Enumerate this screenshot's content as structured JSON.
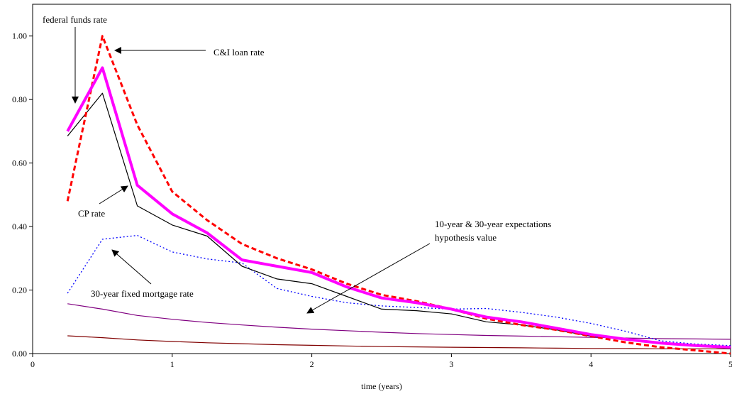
{
  "chart_data": {
    "type": "line",
    "title": "",
    "xlabel": "time (years)",
    "ylabel": "",
    "xlim": [
      0,
      5
    ],
    "ylim": [
      0,
      1.1
    ],
    "x_ticks": [
      "0",
      "1",
      "2",
      "3",
      "4",
      "5"
    ],
    "y_ticks": [
      "0.00",
      "0.20",
      "0.40",
      "0.60",
      "0.80",
      "1.00"
    ],
    "grid": false,
    "series": [
      {
        "key": "cil",
        "color": "#ff0000",
        "style": "dashed-thick",
        "points": [
          [
            0.25,
            0.48
          ],
          [
            0.5,
            1.0
          ],
          [
            0.75,
            0.72
          ],
          [
            1.0,
            0.51
          ],
          [
            1.25,
            0.42
          ],
          [
            1.5,
            0.345
          ],
          [
            1.75,
            0.3
          ],
          [
            2.0,
            0.265
          ],
          [
            2.25,
            0.22
          ],
          [
            2.5,
            0.185
          ],
          [
            2.75,
            0.165
          ],
          [
            3.0,
            0.14
          ],
          [
            3.25,
            0.11
          ],
          [
            3.5,
            0.09
          ],
          [
            3.75,
            0.075
          ],
          [
            4.0,
            0.055
          ],
          [
            4.25,
            0.035
          ],
          [
            4.5,
            0.02
          ],
          [
            4.75,
            0.01
          ],
          [
            5.0,
            0.0
          ]
        ]
      },
      {
        "key": "ff",
        "color": "#ff00ff",
        "style": "solid-thick",
        "points": [
          [
            0.25,
            0.7
          ],
          [
            0.5,
            0.9
          ],
          [
            0.75,
            0.53
          ],
          [
            1.0,
            0.44
          ],
          [
            1.25,
            0.38
          ],
          [
            1.5,
            0.295
          ],
          [
            1.75,
            0.275
          ],
          [
            2.0,
            0.255
          ],
          [
            2.25,
            0.21
          ],
          [
            2.5,
            0.175
          ],
          [
            2.75,
            0.16
          ],
          [
            3.0,
            0.14
          ],
          [
            3.25,
            0.115
          ],
          [
            3.5,
            0.1
          ],
          [
            3.75,
            0.08
          ],
          [
            4.0,
            0.06
          ],
          [
            4.25,
            0.045
          ],
          [
            4.5,
            0.033
          ],
          [
            4.75,
            0.025
          ],
          [
            5.0,
            0.02
          ]
        ]
      },
      {
        "key": "cp",
        "color": "#000000",
        "style": "solid-thin",
        "points": [
          [
            0.25,
            0.685
          ],
          [
            0.5,
            0.82
          ],
          [
            0.75,
            0.465
          ],
          [
            1.0,
            0.405
          ],
          [
            1.25,
            0.37
          ],
          [
            1.5,
            0.275
          ],
          [
            1.75,
            0.235
          ],
          [
            2.0,
            0.22
          ],
          [
            2.25,
            0.18
          ],
          [
            2.5,
            0.14
          ],
          [
            2.75,
            0.135
          ],
          [
            3.0,
            0.125
          ],
          [
            3.25,
            0.1
          ],
          [
            3.5,
            0.09
          ],
          [
            3.75,
            0.075
          ],
          [
            4.0,
            0.055
          ],
          [
            4.25,
            0.045
          ],
          [
            4.5,
            0.035
          ],
          [
            4.75,
            0.025
          ],
          [
            5.0,
            0.015
          ]
        ]
      },
      {
        "key": "mort",
        "color": "#0000ff",
        "style": "dotted",
        "points": [
          [
            0.25,
            0.19
          ],
          [
            0.5,
            0.36
          ],
          [
            0.75,
            0.372
          ],
          [
            1.0,
            0.32
          ],
          [
            1.25,
            0.298
          ],
          [
            1.5,
            0.285
          ],
          [
            1.75,
            0.205
          ],
          [
            2.0,
            0.18
          ],
          [
            2.25,
            0.16
          ],
          [
            2.5,
            0.15
          ],
          [
            2.75,
            0.145
          ],
          [
            3.0,
            0.14
          ],
          [
            3.25,
            0.142
          ],
          [
            3.5,
            0.13
          ],
          [
            3.75,
            0.115
          ],
          [
            4.0,
            0.095
          ],
          [
            4.25,
            0.07
          ],
          [
            4.5,
            0.04
          ],
          [
            4.75,
            0.03
          ],
          [
            5.0,
            0.025
          ]
        ]
      },
      {
        "key": "ehv10",
        "color": "#800080",
        "style": "solid-thin",
        "points": [
          [
            0.25,
            0.157
          ],
          [
            0.5,
            0.14
          ],
          [
            0.75,
            0.12
          ],
          [
            1.0,
            0.108
          ],
          [
            1.25,
            0.098
          ],
          [
            1.5,
            0.09
          ],
          [
            1.75,
            0.083
          ],
          [
            2.0,
            0.077
          ],
          [
            2.25,
            0.072
          ],
          [
            2.5,
            0.067
          ],
          [
            2.75,
            0.063
          ],
          [
            3.0,
            0.06
          ],
          [
            3.25,
            0.057
          ],
          [
            3.5,
            0.055
          ],
          [
            3.75,
            0.053
          ],
          [
            4.0,
            0.051
          ],
          [
            4.25,
            0.049
          ],
          [
            4.5,
            0.047
          ],
          [
            4.75,
            0.046
          ],
          [
            5.0,
            0.045
          ]
        ]
      },
      {
        "key": "ehv30",
        "color": "#800000",
        "style": "solid-thin",
        "points": [
          [
            0.25,
            0.056
          ],
          [
            0.5,
            0.05
          ],
          [
            0.75,
            0.043
          ],
          [
            1.0,
            0.038
          ],
          [
            1.25,
            0.034
          ],
          [
            1.5,
            0.031
          ],
          [
            1.75,
            0.028
          ],
          [
            2.0,
            0.026
          ],
          [
            2.25,
            0.024
          ],
          [
            2.5,
            0.022
          ],
          [
            2.75,
            0.021
          ],
          [
            3.0,
            0.02
          ],
          [
            3.25,
            0.019
          ],
          [
            3.5,
            0.018
          ],
          [
            3.75,
            0.017
          ],
          [
            4.0,
            0.016
          ],
          [
            4.25,
            0.016
          ],
          [
            4.5,
            0.015
          ],
          [
            4.75,
            0.015
          ],
          [
            5.0,
            0.015
          ]
        ]
      }
    ],
    "annotations": [
      {
        "key": "ff",
        "text": "federal funds rate"
      },
      {
        "key": "cil",
        "text": "C&I loan rate"
      },
      {
        "key": "cp",
        "text": "CP rate"
      },
      {
        "key": "mort",
        "text": "30-year fixed mortgage rate"
      },
      {
        "key": "ehv1",
        "text": "10-year & 30-year expectations"
      },
      {
        "key": "ehv2",
        "text": "hypothesis value"
      }
    ]
  }
}
